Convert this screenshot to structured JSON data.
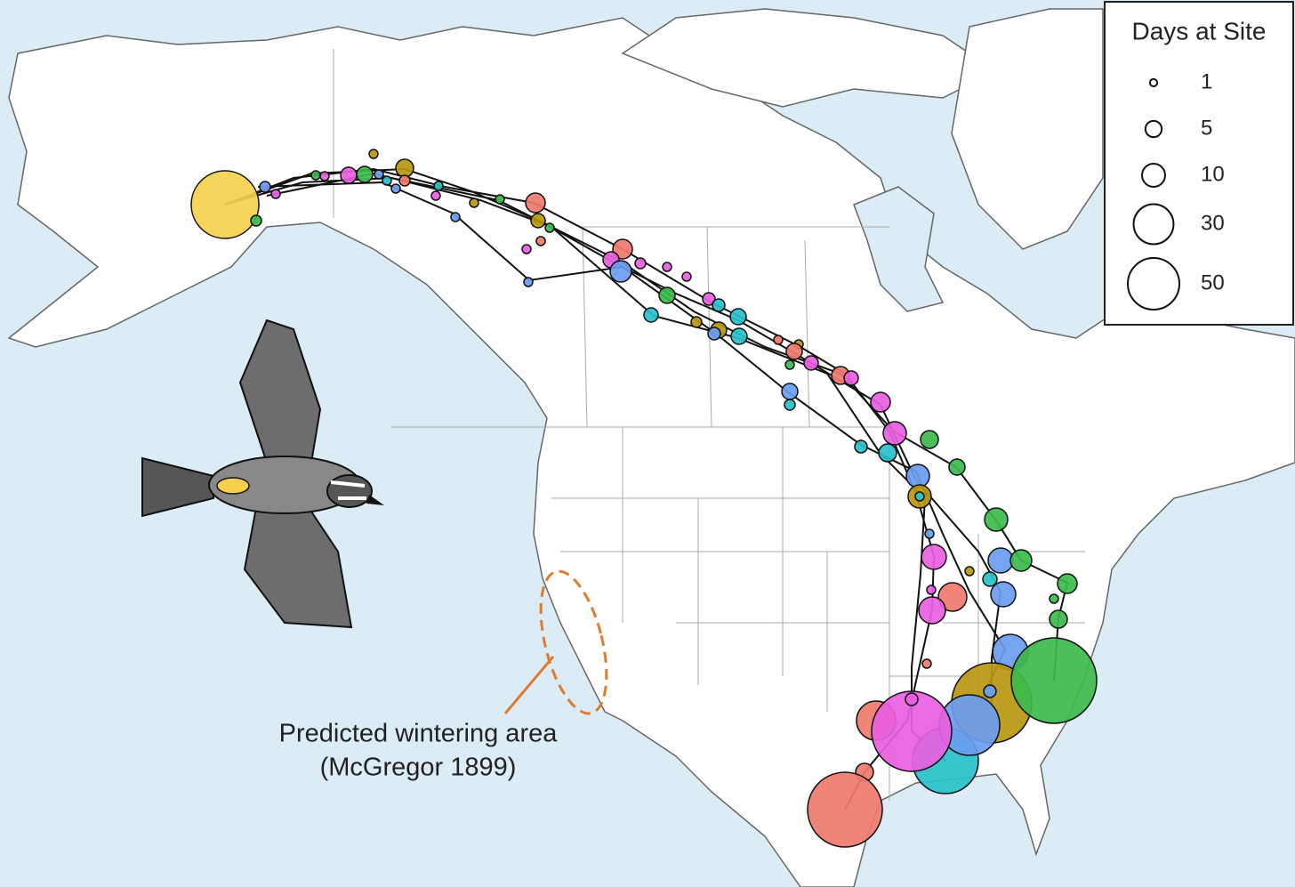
{
  "legend": {
    "title": "Days at Site",
    "entries": [
      1,
      5,
      10,
      30,
      50
    ]
  },
  "annotation": {
    "lines": [
      "Predicted wintering area",
      "(McGregor 1899)"
    ]
  }
}
